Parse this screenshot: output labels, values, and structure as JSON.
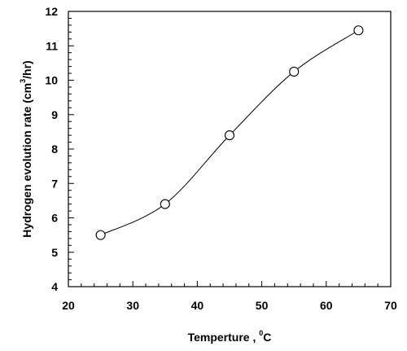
{
  "chart_data": {
    "type": "line",
    "title": "",
    "xlabel": "Temperture , ",
    "xlabel_sup": "0",
    "xlabel_unit": "C",
    "ylabel": "Hydrogen evolution rate (cm",
    "ylabel_sup": "3",
    "ylabel_unit": "/hr)",
    "xlim": [
      20,
      70
    ],
    "ylim": [
      4,
      12
    ],
    "xticks": [
      20,
      30,
      40,
      50,
      60,
      70
    ],
    "yticks": [
      4,
      5,
      6,
      7,
      8,
      9,
      10,
      11,
      12
    ],
    "grid": false,
    "legend": "none",
    "marker": "open-circle",
    "line_color": "#000000",
    "series": [
      {
        "x": [
          25,
          35,
          45,
          55,
          65
        ],
        "y": [
          5.5,
          6.4,
          8.4,
          10.25,
          11.45
        ]
      }
    ]
  }
}
